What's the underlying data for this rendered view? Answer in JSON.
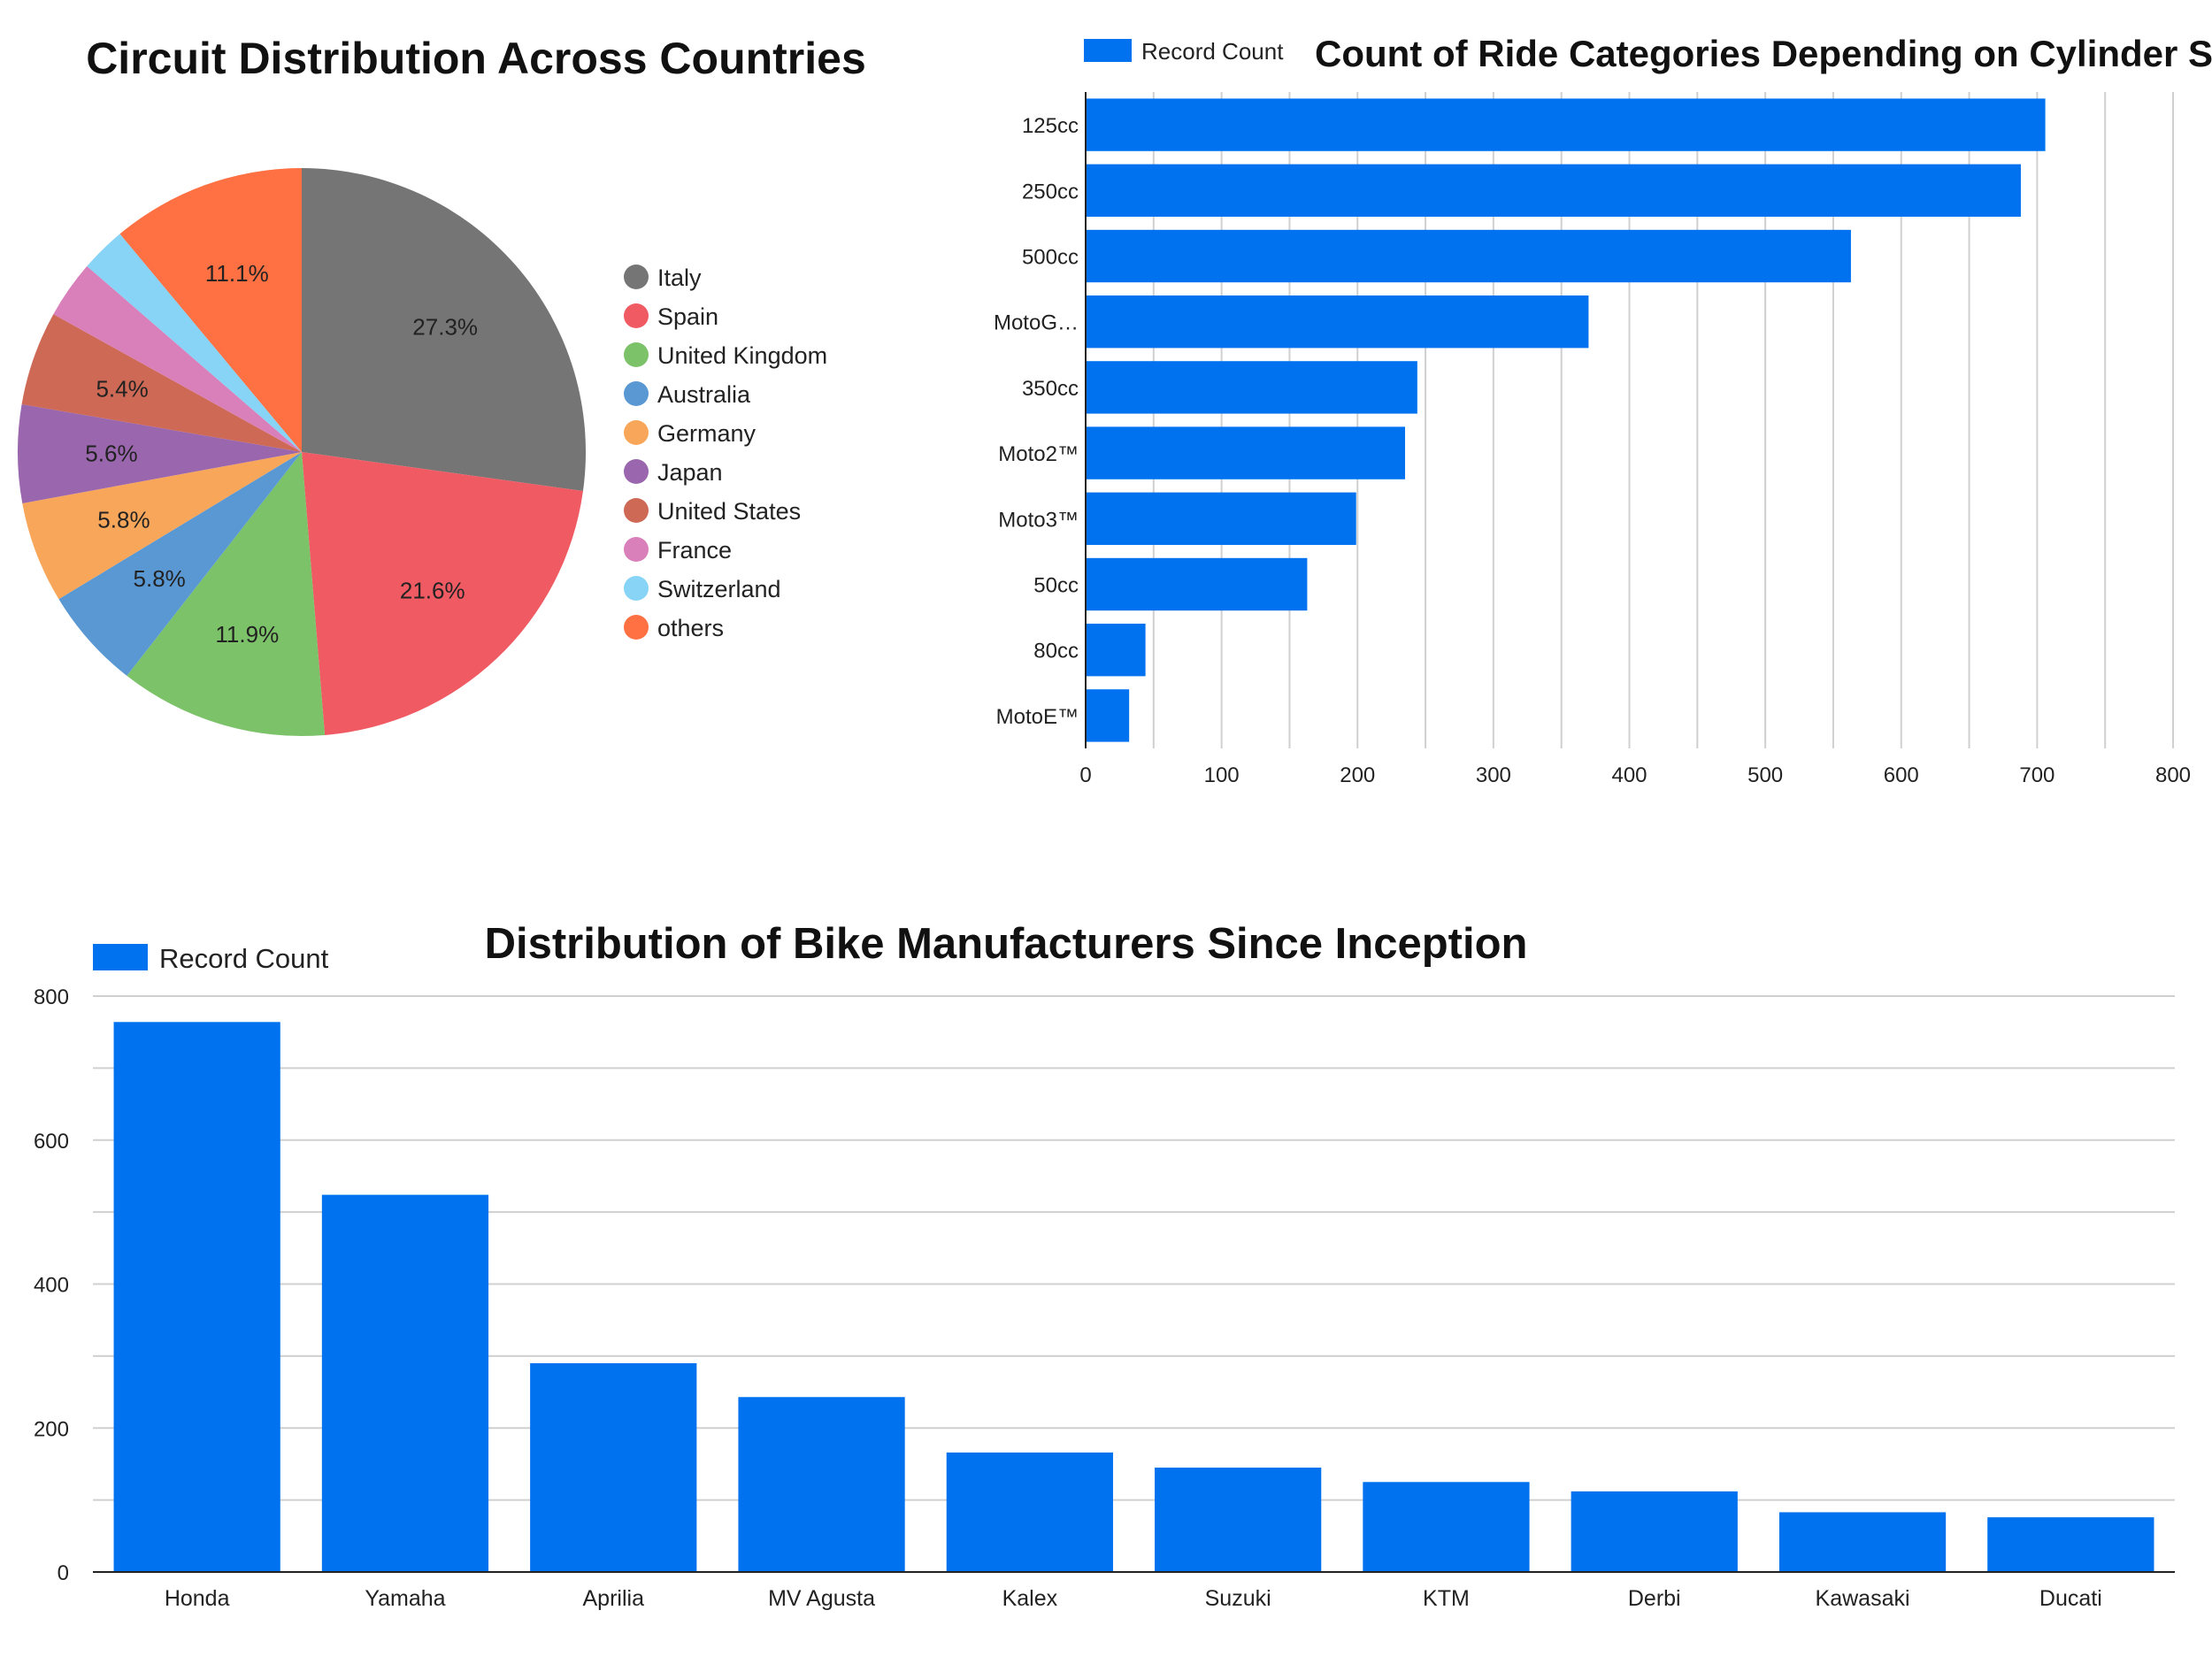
{
  "chart_data": [
    {
      "type": "pie",
      "title": "Circuit Distribution Across Countries",
      "slices": [
        {
          "label": "Italy",
          "value": 27.3,
          "display": "27.3%",
          "color": "#757575"
        },
        {
          "label": "Spain",
          "value": 21.6,
          "display": "21.6%",
          "color": "#ef5a63"
        },
        {
          "label": "United Kingdom",
          "value": 11.9,
          "display": "11.9%",
          "color": "#7cc269"
        },
        {
          "label": "Australia",
          "value": 5.8,
          "display": "5.8%",
          "color": "#5a98d4"
        },
        {
          "label": "Germany",
          "value": 5.8,
          "display": "5.8%",
          "color": "#f8a75a"
        },
        {
          "label": "Japan",
          "value": 5.6,
          "display": "5.6%",
          "color": "#9a66ad"
        },
        {
          "label": "United States",
          "value": 5.4,
          "display": "5.4%",
          "color": "#cd6955"
        },
        {
          "label": "France",
          "value": 3.3,
          "display": "",
          "color": "#d97fb9"
        },
        {
          "label": "Switzerland",
          "value": 2.6,
          "display": "",
          "color": "#87d4f7"
        },
        {
          "label": "others",
          "value": 11.1,
          "display": "11.1%",
          "color": "#ff7043"
        }
      ],
      "legend_position": "right"
    },
    {
      "type": "bar",
      "orientation": "horizontal",
      "title": "Count of Ride Categories Depending on Cylinder Size",
      "legend": "Record Count",
      "legend_position": "top-left",
      "color": "#0072f0",
      "categories": [
        "125cc",
        "250cc",
        "500cc",
        "MotoG…",
        "350cc",
        "Moto2™",
        "Moto3™",
        "50cc",
        "80cc",
        "MotoE™"
      ],
      "values": [
        706,
        688,
        563,
        370,
        244,
        235,
        199,
        163,
        44,
        32
      ],
      "xlim": [
        0,
        800
      ],
      "xticks": [
        "0",
        "100",
        "200",
        "300",
        "400",
        "500",
        "600",
        "700",
        "800"
      ],
      "grid": true
    },
    {
      "type": "bar",
      "orientation": "vertical",
      "title": "Distribution of Bike Manufacturers Since Inception",
      "legend": "Record Count",
      "legend_position": "top-left",
      "color": "#0072f0",
      "categories": [
        "Honda",
        "Yamaha",
        "Aprilia",
        "MV Agusta",
        "Kalex",
        "Suzuki",
        "KTM",
        "Derbi",
        "Kawasaki",
        "Ducati"
      ],
      "values": [
        764,
        524,
        290,
        243,
        166,
        145,
        125,
        112,
        83,
        76
      ],
      "ylim": [
        0,
        800
      ],
      "yticks": [
        "0",
        "200",
        "400",
        "600",
        "800"
      ],
      "grid": true
    }
  ]
}
